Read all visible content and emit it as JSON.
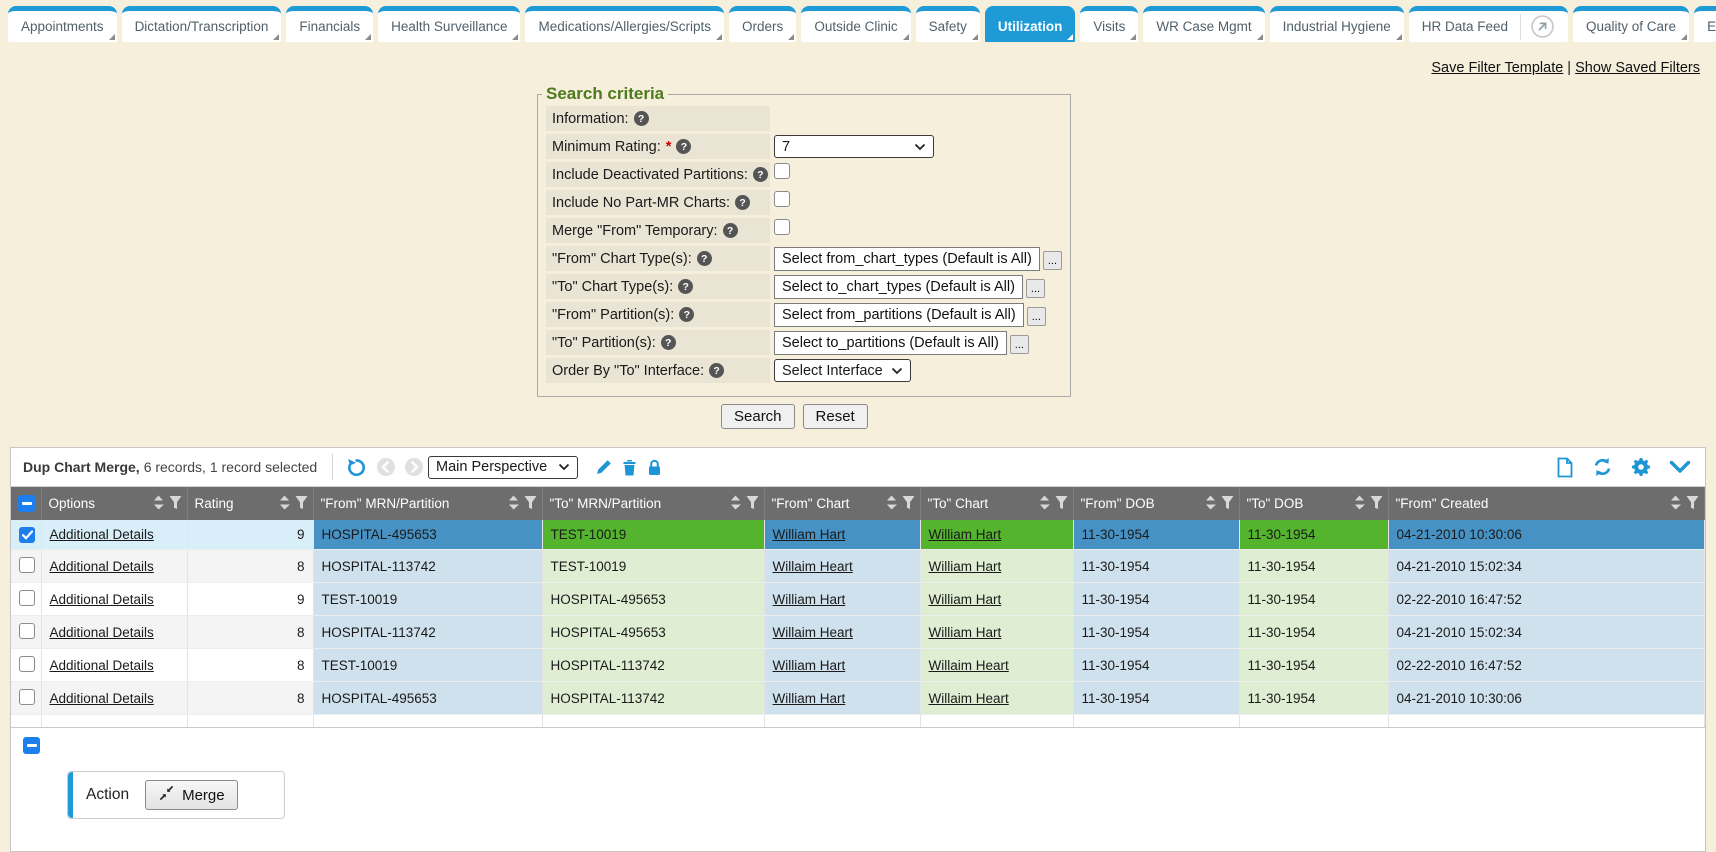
{
  "ui": {
    "help_glyph": "?",
    "required_mark": "*"
  },
  "colors": {
    "page_cream": "#f6efdc",
    "tab_blue": "#1e9bd7",
    "accent_blue": "#1e96d6",
    "check_blue": "#1b7ff0",
    "header_gray": "#6d6d6d",
    "legend_green": "#4d7b1f",
    "label_beige": "#e9e4d4",
    "sel_from": "#4792c5",
    "sel_to": "#54b42e",
    "pale_from": "#cfe1ed",
    "pale_to": "#dfeed3",
    "sel_neutral": "#d8eef8"
  },
  "tabs": [
    {
      "label": "Appointments"
    },
    {
      "label": "Dictation/Transcription"
    },
    {
      "label": "Financials"
    },
    {
      "label": "Health Surveillance"
    },
    {
      "label": "Medications/Allergies/Scripts"
    },
    {
      "label": "Orders"
    },
    {
      "label": "Outside Clinic"
    },
    {
      "label": "Safety"
    },
    {
      "label": "Utilization",
      "active": true
    },
    {
      "label": "Visits"
    },
    {
      "label": "WR Case Mgmt"
    },
    {
      "label": "Industrial Hygiene"
    },
    {
      "label": "HR Data Feed",
      "external_icon": true
    },
    {
      "label": "Quality of Care"
    },
    {
      "label": "Exec"
    }
  ],
  "filter_links": {
    "save": "Save Filter Template",
    "separator": "|",
    "show": "Show Saved Filters"
  },
  "search": {
    "legend": "Search criteria",
    "rows": [
      {
        "label": "Information:",
        "control": "none"
      },
      {
        "label": "Minimum Rating:",
        "required": true,
        "control": "select",
        "value": "7"
      },
      {
        "label": "Include Deactivated Partitions:",
        "control": "checkbox",
        "checked": false
      },
      {
        "label": "Include No Part-MR Charts:",
        "control": "checkbox",
        "checked": false
      },
      {
        "label": "Merge \"From\" Temporary:",
        "control": "checkbox",
        "checked": false
      },
      {
        "label": "\"From\" Chart Type(s):",
        "control": "picker",
        "value": "Select from_chart_types (Default is All)",
        "button": "..."
      },
      {
        "label": "\"To\" Chart Type(s):",
        "control": "picker",
        "value": "Select to_chart_types (Default is All)",
        "button": "..."
      },
      {
        "label": "\"From\" Partition(s):",
        "control": "picker",
        "value": "Select from_partitions (Default is All)",
        "button": "..."
      },
      {
        "label": "\"To\" Partition(s):",
        "control": "picker",
        "value": "Select to_partitions (Default is All)",
        "button": "..."
      },
      {
        "label": "Order By \"To\" Interface:",
        "control": "select",
        "value": "Select Interface"
      }
    ],
    "buttons": {
      "search": "Search",
      "reset": "Reset"
    }
  },
  "grid": {
    "toolbar": {
      "title": "Dup Chart Merge,",
      "records": "6 records, 1 record selected",
      "perspective": "Main Perspective",
      "left_icons": [
        "undo-icon",
        "nav-prev-icon",
        "nav-next-icon"
      ],
      "edit_icons": [
        "edit-icon",
        "delete-icon",
        "lock-icon"
      ],
      "right_icons": [
        "new-document-icon",
        "refresh-icon",
        "gear-icon",
        "collapse-chevron-icon"
      ]
    },
    "column_icons": [
      "sort-icon",
      "filter-icon"
    ],
    "columns": [
      {
        "label": "Options",
        "key": "options"
      },
      {
        "label": "Rating",
        "key": "rating"
      },
      {
        "label": "\"From\" MRN/Partition",
        "key": "from_mrn"
      },
      {
        "label": "\"To\" MRN/Partition",
        "key": "to_mrn"
      },
      {
        "label": "\"From\" Chart",
        "key": "from_chart"
      },
      {
        "label": "\"To\" Chart",
        "key": "to_chart"
      },
      {
        "label": "\"From\" DOB",
        "key": "from_dob"
      },
      {
        "label": "\"To\" DOB",
        "key": "to_dob"
      },
      {
        "label": "\"From\" Created",
        "key": "from_created"
      }
    ],
    "link_columns": [
      "options",
      "from_chart",
      "to_chart"
    ],
    "rows": [
      {
        "selected": true,
        "options": "Additional Details",
        "rating": "9",
        "from_mrn": "HOSPITAL-495653",
        "to_mrn": "TEST-10019",
        "from_chart": "William Hart",
        "to_chart": "William Hart",
        "from_dob": "11-30-1954",
        "to_dob": "11-30-1954",
        "from_created": "04-21-2010 10:30:06"
      },
      {
        "selected": false,
        "options": "Additional Details",
        "rating": "8",
        "from_mrn": "HOSPITAL-113742",
        "to_mrn": "TEST-10019",
        "from_chart": "Willaim Heart",
        "to_chart": "William Hart",
        "from_dob": "11-30-1954",
        "to_dob": "11-30-1954",
        "from_created": "04-21-2010 15:02:34"
      },
      {
        "selected": false,
        "options": "Additional Details",
        "rating": "9",
        "from_mrn": "TEST-10019",
        "to_mrn": "HOSPITAL-495653",
        "from_chart": "William Hart",
        "to_chart": "William Hart",
        "from_dob": "11-30-1954",
        "to_dob": "11-30-1954",
        "from_created": "02-22-2010 16:47:52"
      },
      {
        "selected": false,
        "options": "Additional Details",
        "rating": "8",
        "from_mrn": "HOSPITAL-113742",
        "to_mrn": "HOSPITAL-495653",
        "from_chart": "Willaim Heart",
        "to_chart": "William Hart",
        "from_dob": "11-30-1954",
        "to_dob": "11-30-1954",
        "from_created": "04-21-2010 15:02:34"
      },
      {
        "selected": false,
        "options": "Additional Details",
        "rating": "8",
        "from_mrn": "TEST-10019",
        "to_mrn": "HOSPITAL-113742",
        "from_chart": "William Hart",
        "to_chart": "Willaim Heart",
        "from_dob": "11-30-1954",
        "to_dob": "11-30-1954",
        "from_created": "02-22-2010 16:47:52"
      },
      {
        "selected": false,
        "options": "Additional Details",
        "rating": "8",
        "from_mrn": "HOSPITAL-495653",
        "to_mrn": "HOSPITAL-113742",
        "from_chart": "William Hart",
        "to_chart": "Willaim Heart",
        "from_dob": "11-30-1954",
        "to_dob": "11-30-1954",
        "from_created": "04-21-2010 10:30:06"
      }
    ],
    "footer": {
      "action_label": "Action",
      "merge_label": "Merge"
    }
  }
}
